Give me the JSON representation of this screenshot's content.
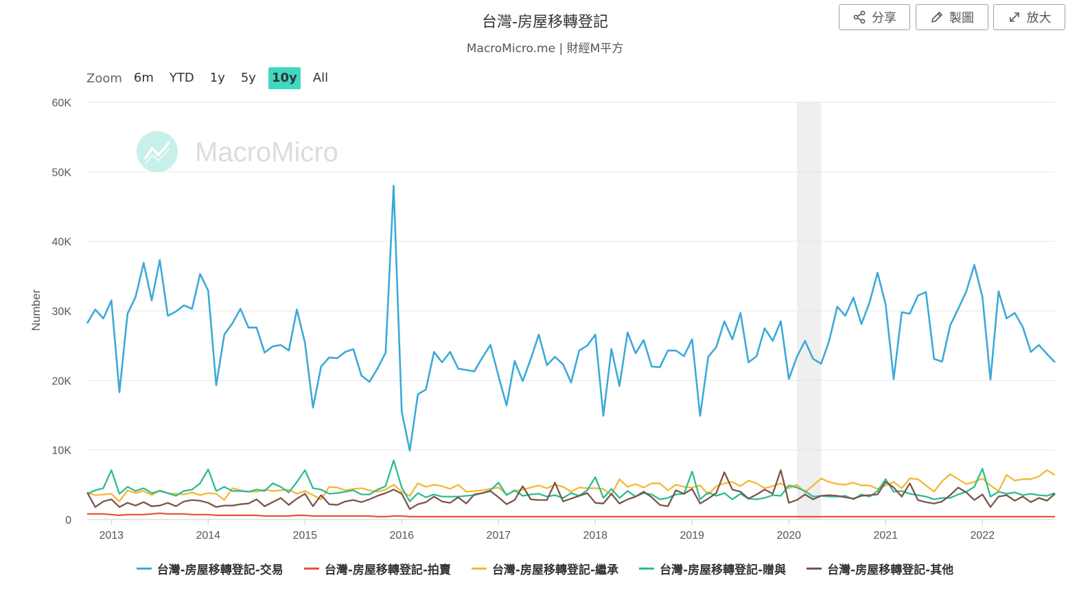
{
  "header": {
    "title": "台灣-房屋移轉登記",
    "subtitle": "MacroMicro.me | 財經M平方"
  },
  "toolbar": {
    "share_label": "分享",
    "edit_label": "製圖",
    "expand_label": "放大"
  },
  "zoom": {
    "label": "Zoom",
    "options": [
      "6m",
      "YTD",
      "1y",
      "5y",
      "10y",
      "All"
    ],
    "selected": "10y"
  },
  "watermark": "MacroMicro",
  "colors": {
    "trade": "#3ba9d8",
    "auction": "#e8533a",
    "inherit": "#f5b731",
    "gift": "#2bbc91",
    "other": "#7a5448",
    "accent": "#3fd8c0"
  },
  "chart_data": {
    "type": "line",
    "title": "台灣-房屋移轉登記",
    "ylabel": "Number",
    "ylim": [
      0,
      60000
    ],
    "yticks": [
      "0",
      "10K",
      "20K",
      "30K",
      "40K",
      "50K",
      "60K"
    ],
    "xticks": [
      "2013",
      "2014",
      "2015",
      "2016",
      "2017",
      "2018",
      "2019",
      "2020",
      "2021",
      "2022"
    ],
    "x_start": "2012-10",
    "x_end": "2022-10",
    "shaded_region": [
      "2020-02",
      "2020-05"
    ],
    "grid": true,
    "legend_position": "bottom",
    "series": [
      {
        "name": "台灣-房屋移轉登記-交易",
        "values": [
          28200,
          30200,
          28900,
          31500,
          18300,
          29600,
          32000,
          36900,
          31500,
          37300,
          29300,
          29900,
          30800,
          30300,
          35300,
          32900,
          19300,
          26600,
          28200,
          30300,
          27600,
          27600,
          24000,
          24900,
          25100,
          24300,
          30200,
          25400,
          16100,
          22000,
          23300,
          23200,
          24100,
          24500,
          20700,
          19800,
          21700,
          24000,
          48000,
          15500,
          9900,
          18000,
          18700,
          24100,
          22600,
          24100,
          21700,
          21500,
          21300,
          23300,
          25100,
          20600,
          16400,
          22800,
          19900,
          23100,
          26600,
          22200,
          23400,
          22300,
          19700,
          24300,
          25000,
          26600,
          14900,
          24500,
          19200,
          26900,
          23900,
          25800,
          22000,
          21900,
          24300,
          24300,
          23500,
          25900,
          14900,
          23400,
          24800,
          28500,
          25900,
          29700,
          22600,
          23500,
          27500,
          25700,
          28500,
          20200,
          23400,
          25700,
          23100,
          22400,
          25700,
          30600,
          29300,
          31900,
          28100,
          31200,
          35500,
          30900,
          20200,
          29800,
          29600,
          32200,
          32700,
          23100,
          22700,
          27900,
          30300,
          32800,
          36600,
          32000,
          20100,
          32800,
          28900,
          29700,
          27700,
          24100,
          25100,
          23800,
          22600
        ]
      },
      {
        "name": "台灣-房屋移轉登記-拍賣",
        "values": [
          800,
          800,
          800,
          700,
          600,
          700,
          700,
          700,
          800,
          900,
          800,
          800,
          800,
          700,
          700,
          700,
          600,
          600,
          600,
          600,
          600,
          600,
          500,
          500,
          500,
          500,
          600,
          600,
          500,
          500,
          500,
          500,
          500,
          500,
          500,
          500,
          400,
          400,
          500,
          500,
          400,
          400,
          400,
          400,
          400,
          400,
          400,
          400,
          400,
          400,
          400,
          400,
          400,
          400,
          400,
          400,
          400,
          400,
          400,
          400,
          400,
          400,
          400,
          400,
          400,
          400,
          400,
          400,
          400,
          400,
          400,
          400,
          400,
          400,
          400,
          400,
          400,
          400,
          400,
          400,
          400,
          400,
          400,
          400,
          400,
          400,
          400,
          400,
          400,
          400,
          400,
          400,
          400,
          400,
          400,
          400,
          400,
          400,
          400,
          400,
          400,
          400,
          400,
          400,
          400,
          400,
          400,
          400,
          400,
          400,
          400,
          400,
          400,
          400,
          400,
          400,
          400,
          400,
          400,
          400,
          400
        ]
      },
      {
        "name": "台灣-房屋移轉登記-繼承",
        "values": [
          3800,
          3500,
          3600,
          3700,
          2600,
          4200,
          3800,
          4100,
          3500,
          4200,
          3800,
          3700,
          3600,
          3900,
          3500,
          3800,
          3700,
          2800,
          4500,
          4200,
          4000,
          4000,
          4300,
          4100,
          4200,
          4300,
          3700,
          4100,
          3500,
          2900,
          4700,
          4600,
          4200,
          4400,
          4500,
          4200,
          4000,
          4300,
          5000,
          4000,
          3400,
          5200,
          4700,
          5000,
          4800,
          4400,
          5000,
          4000,
          4100,
          4200,
          4400,
          4600,
          3600,
          4100,
          4300,
          4600,
          4900,
          4500,
          5000,
          4700,
          4000,
          4600,
          4500,
          4500,
          4400,
          3500,
          5800,
          4700,
          5100,
          4600,
          5200,
          5200,
          4200,
          5000,
          4700,
          4600,
          4900,
          3600,
          4800,
          5200,
          5400,
          4800,
          5600,
          5200,
          4500,
          4800,
          5200,
          4500,
          5000,
          3900,
          4900,
          5900,
          5400,
          5100,
          5000,
          5300,
          4900,
          4900,
          4400,
          4900,
          5400,
          4500,
          5900,
          5800,
          4900,
          4000,
          5500,
          6500,
          5800,
          5100,
          5400,
          5900,
          4900,
          4100,
          6400,
          5600,
          5800,
          5800,
          6200,
          7100,
          6400
        ]
      },
      {
        "name": "台灣-房屋移轉登記-贈與",
        "values": [
          3700,
          4200,
          4500,
          7100,
          3700,
          4700,
          4100,
          4500,
          3800,
          4100,
          3800,
          3400,
          4100,
          4300,
          5200,
          7200,
          4100,
          4700,
          4100,
          4100,
          4000,
          4300,
          4100,
          5200,
          4700,
          3900,
          5400,
          7100,
          4500,
          4300,
          3700,
          3800,
          4000,
          4200,
          3600,
          3600,
          4300,
          4800,
          8500,
          4600,
          2600,
          3800,
          3200,
          3600,
          3300,
          3300,
          3300,
          3400,
          3500,
          3800,
          4200,
          5300,
          3500,
          4200,
          3400,
          3600,
          3700,
          3300,
          3500,
          3100,
          3800,
          3400,
          4200,
          6100,
          3100,
          4400,
          3100,
          4100,
          3300,
          3800,
          3600,
          2900,
          3100,
          3600,
          3700,
          6900,
          2900,
          3900,
          3400,
          3800,
          2900,
          3700,
          3000,
          2900,
          3100,
          3500,
          3400,
          4900,
          4600,
          4100,
          3300,
          3400,
          3300,
          3300,
          3400,
          2900,
          3600,
          3300,
          4100,
          5800,
          4000,
          4100,
          3700,
          3500,
          3300,
          2900,
          3100,
          3100,
          3600,
          4000,
          4700,
          7300,
          3300,
          4000,
          3700,
          3900,
          3500,
          3700,
          3500,
          3400,
          3800
        ]
      },
      {
        "name": "台灣-房屋移轉登記-其他",
        "values": [
          3900,
          1800,
          2600,
          2900,
          1800,
          2400,
          2000,
          2500,
          1900,
          2000,
          2400,
          1900,
          2600,
          2800,
          2700,
          2400,
          1800,
          2000,
          2000,
          2200,
          2300,
          2900,
          1900,
          2500,
          3100,
          2100,
          3000,
          3700,
          1900,
          3500,
          2200,
          2100,
          2600,
          2800,
          2500,
          2900,
          3400,
          3800,
          4300,
          3700,
          1500,
          2200,
          2500,
          3300,
          2600,
          2400,
          3200,
          2300,
          3600,
          3800,
          4100,
          3200,
          2200,
          2800,
          4800,
          2900,
          2800,
          2800,
          5300,
          2600,
          3000,
          3400,
          3800,
          2400,
          2300,
          3700,
          2300,
          2900,
          3300,
          4000,
          3200,
          2100,
          1900,
          4200,
          3700,
          4400,
          2300,
          3000,
          3800,
          6800,
          4300,
          4000,
          3000,
          3600,
          4300,
          3700,
          7100,
          2400,
          2800,
          3600,
          2900,
          3400,
          3500,
          3400,
          3200,
          3000,
          3400,
          3500,
          3600,
          5400,
          4600,
          3300,
          5200,
          2800,
          2500,
          2300,
          2600,
          3500,
          4600,
          3900,
          2800,
          3600,
          1800,
          3300,
          3500,
          2700,
          3300,
          2500,
          3100,
          2700,
          3700
        ]
      }
    ]
  }
}
